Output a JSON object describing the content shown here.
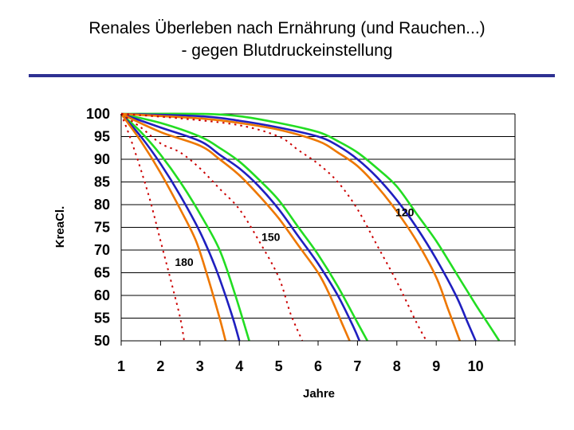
{
  "title": {
    "line1": "Renales Überleben nach Ernährung (und Rauchen...)",
    "line2": "- gegen Blutdruckeinstellung"
  },
  "chart_data": {
    "type": "line",
    "title": "Renales Überleben nach Ernährung (und Rauchen...) - gegen Blutdruckeinstellung",
    "xlabel": "Jahre",
    "ylabel": "KreaCl.",
    "xlim": [
      1,
      11
    ],
    "ylim": [
      50,
      100
    ],
    "xticks": [
      "1",
      "2",
      "3",
      "4",
      "5",
      "6",
      "7",
      "8",
      "9",
      "10"
    ],
    "yticks": [
      "100",
      "95",
      "90",
      "85",
      "80",
      "75",
      "70",
      "65",
      "60",
      "55",
      "50"
    ],
    "grid": "horizontal",
    "colors": {
      "dotted": "#cc0000",
      "orange": "#ee7700",
      "blue": "#1f1fbf",
      "green": "#22dd22"
    },
    "annotations": [
      {
        "text": "180",
        "x": 2.6,
        "y": 66.5
      },
      {
        "text": "150",
        "x": 4.8,
        "y": 72
      },
      {
        "text": "120",
        "x": 8.2,
        "y": 77.5
      }
    ],
    "series": [
      {
        "group": "180",
        "style": "dotted",
        "x": [
          1,
          1.3,
          1.7,
          2.0,
          2.3,
          2.5,
          2.6
        ],
        "y": [
          100,
          93,
          82,
          72,
          62,
          55,
          50
        ]
      },
      {
        "group": "180",
        "style": "orange",
        "x": [
          1,
          1.5,
          2.0,
          2.5,
          2.9,
          3.2,
          3.5,
          3.65
        ],
        "y": [
          100,
          94,
          87,
          79,
          72,
          64,
          55,
          50
        ]
      },
      {
        "group": "180",
        "style": "blue",
        "x": [
          1,
          1.5,
          2.0,
          2.5,
          3.0,
          3.4,
          3.8,
          4.0
        ],
        "y": [
          100,
          95,
          89,
          82,
          74,
          66,
          56,
          50
        ]
      },
      {
        "group": "180",
        "style": "green",
        "x": [
          1,
          1.5,
          2.0,
          2.5,
          3.0,
          3.5,
          3.9,
          4.25
        ],
        "y": [
          100,
          96,
          91,
          85,
          78,
          70,
          60,
          50
        ]
      },
      {
        "group": "150",
        "style": "dotted",
        "x": [
          1,
          1.5,
          2.0,
          2.5,
          3.0,
          3.5,
          4.0,
          4.5,
          5.0,
          5.3,
          5.6
        ],
        "y": [
          100,
          97,
          93.5,
          91.5,
          88,
          83.5,
          79,
          72,
          64,
          56,
          50
        ]
      },
      {
        "group": "150",
        "style": "orange",
        "x": [
          1,
          2.0,
          3.0,
          3.5,
          4.0,
          4.5,
          5.0,
          5.5,
          6.0,
          6.3,
          6.6,
          6.8
        ],
        "y": [
          100,
          96,
          93,
          90,
          86.5,
          82,
          77,
          71,
          65,
          60,
          54,
          50
        ]
      },
      {
        "group": "150",
        "style": "blue",
        "x": [
          1,
          2.0,
          3.0,
          3.5,
          4.0,
          4.5,
          5.0,
          5.5,
          6.0,
          6.5,
          6.9,
          7.05
        ],
        "y": [
          100,
          97,
          94,
          91,
          88,
          84,
          79,
          73,
          67,
          60,
          53,
          50
        ]
      },
      {
        "group": "150",
        "style": "green",
        "x": [
          1,
          2.0,
          3.0,
          3.5,
          4.0,
          4.5,
          5.0,
          5.5,
          6.0,
          6.5,
          7.0,
          7.25
        ],
        "y": [
          100,
          98,
          95,
          92.5,
          89.5,
          85.5,
          81,
          75,
          69,
          62,
          54,
          50
        ]
      },
      {
        "group": "120",
        "style": "dotted",
        "x": [
          1,
          2.5,
          4.0,
          5.0,
          5.5,
          6.0,
          6.5,
          7.0,
          7.5,
          8.0,
          8.5,
          8.75
        ],
        "y": [
          100,
          99,
          97.5,
          95,
          92,
          89,
          85,
          79,
          71,
          63,
          54,
          50
        ]
      },
      {
        "group": "120",
        "style": "orange",
        "x": [
          1,
          3.0,
          4.0,
          5.0,
          6.0,
          6.5,
          7.0,
          7.5,
          8.0,
          8.5,
          9.0,
          9.3,
          9.6
        ],
        "y": [
          100,
          99,
          98,
          96.5,
          94,
          91.5,
          88.5,
          84,
          78.5,
          72,
          64,
          57,
          50
        ]
      },
      {
        "group": "120",
        "style": "blue",
        "x": [
          1,
          3.0,
          4.0,
          5.0,
          6.0,
          6.5,
          7.0,
          7.5,
          8.0,
          8.5,
          9.0,
          9.5,
          9.8,
          10.0
        ],
        "y": [
          100,
          99.5,
          98.5,
          97,
          95,
          93,
          90,
          86,
          81,
          75,
          68,
          60,
          54,
          50
        ]
      },
      {
        "group": "120",
        "style": "green",
        "x": [
          1,
          3.0,
          4.0,
          5.0,
          6.0,
          6.5,
          7.0,
          7.5,
          8.0,
          8.5,
          9.0,
          9.5,
          10.0,
          10.3,
          10.6
        ],
        "y": [
          100,
          100,
          99.5,
          98,
          96,
          94,
          91.5,
          88,
          84,
          78,
          72,
          65,
          58,
          54,
          50
        ]
      }
    ]
  }
}
